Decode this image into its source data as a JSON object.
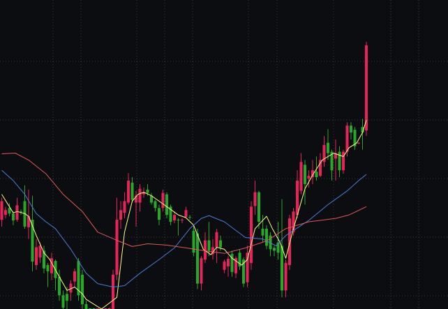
{
  "chart_data": {
    "type": "candlestick",
    "title": "",
    "xlabel": "",
    "ylabel": "",
    "grid": true,
    "ylim": [
      -0.7,
      44.3
    ],
    "colors": {
      "background": "#0c0d10",
      "grid": "#3c3c3c",
      "up": "#e8235a",
      "down": "#28a828",
      "ma_short": "#ffff88",
      "ma_mid": "#4a7fd8",
      "ma_long": "#e05a5a"
    },
    "candles_ohlc": [
      [
        12.3,
        15.5,
        11.3,
        15.0
      ],
      [
        13.0,
        14.2,
        12.5,
        13.7
      ],
      [
        14.0,
        14.7,
        12.8,
        13.2
      ],
      [
        13.2,
        13.5,
        11.5,
        12.2
      ],
      [
        12.3,
        15.5,
        12.0,
        14.4
      ],
      [
        13.5,
        13.8,
        13.0,
        13.4
      ],
      [
        15.0,
        17.3,
        11.0,
        11.3
      ],
      [
        11.2,
        16.7,
        9.5,
        12.8
      ],
      [
        12.3,
        15.8,
        4.8,
        6.2
      ],
      [
        5.7,
        9.5,
        5.0,
        8.3
      ],
      [
        6.8,
        9.0,
        6.0,
        8.5
      ],
      [
        7.8,
        8.5,
        4.5,
        5.2
      ],
      [
        5.7,
        6.0,
        2.5,
        4.8
      ],
      [
        4.5,
        7.5,
        3.5,
        6.7
      ],
      [
        6.3,
        6.5,
        2.0,
        3.8
      ],
      [
        4.0,
        5.0,
        0.5,
        1.3
      ],
      [
        1.3,
        2.0,
        -1.5,
        -0.5
      ],
      [
        1.5,
        2.5,
        -1.0,
        0.5
      ],
      [
        1.7,
        3.5,
        0.5,
        3.0
      ],
      [
        3.3,
        5.2,
        2.5,
        4.8
      ],
      [
        6.3,
        6.7,
        0.5,
        1.3
      ],
      [
        4.3,
        5.0,
        -1.0,
        0.0
      ],
      [
        0.0,
        0.5,
        -3.0,
        -2.0
      ],
      [
        -2.0,
        -1.5,
        -4.0,
        -3.5
      ],
      [
        -3.5,
        -3.0,
        -5.0,
        -4.5
      ],
      [
        -4.5,
        -2.5,
        -5.0,
        -3.0
      ],
      [
        -3.0,
        -2.5,
        -4.5,
        -4.0
      ],
      [
        -4.0,
        -2.0,
        -4.5,
        -2.5
      ],
      [
        -2.5,
        -0.5,
        -3.0,
        -1.0
      ],
      [
        -1.0,
        5.0,
        -2.0,
        4.3
      ],
      [
        4.3,
        15.5,
        3.5,
        12.3
      ],
      [
        12.3,
        15.0,
        11.0,
        13.7
      ],
      [
        13.3,
        16.3,
        12.5,
        15.0
      ],
      [
        14.8,
        19.1,
        14.5,
        18.0
      ],
      [
        17.7,
        18.5,
        14.8,
        15.2
      ],
      [
        14.8,
        16.5,
        11.3,
        15.8
      ],
      [
        14.8,
        17.5,
        13.5,
        16.8
      ],
      [
        16.0,
        17.0,
        15.5,
        16.3
      ],
      [
        16.7,
        17.5,
        15.8,
        16.2
      ],
      [
        15.8,
        16.2,
        14.5,
        14.8
      ],
      [
        15.0,
        15.2,
        13.5,
        14.0
      ],
      [
        14.0,
        14.5,
        11.5,
        12.3
      ],
      [
        14.0,
        16.7,
        13.5,
        16.2
      ],
      [
        16.0,
        16.3,
        12.5,
        13.0
      ],
      [
        14.2,
        14.5,
        11.5,
        12.0
      ],
      [
        12.2,
        13.5,
        11.8,
        13.0
      ],
      [
        12.3,
        12.5,
        10.0,
        12.2
      ],
      [
        12.2,
        12.5,
        11.8,
        12.3
      ],
      [
        12.7,
        14.2,
        12.5,
        13.7
      ],
      [
        12.7,
        13.0,
        12.3,
        12.6
      ],
      [
        10.7,
        11.5,
        7.0,
        7.5
      ],
      [
        10.3,
        11.0,
        2.2,
        3.0
      ],
      [
        3.0,
        7.0,
        2.0,
        6.7
      ],
      [
        6.5,
        10.5,
        6.0,
        9.3
      ],
      [
        9.3,
        12.0,
        7.0,
        7.8
      ],
      [
        7.3,
        9.5,
        6.5,
        8.3
      ],
      [
        8.3,
        11.0,
        6.0,
        10.5
      ],
      [
        9.3,
        10.0,
        7.8,
        8.3
      ],
      [
        5.0,
        6.5,
        4.5,
        6.2
      ],
      [
        5.5,
        7.0,
        4.0,
        6.6
      ],
      [
        7.3,
        7.8,
        4.0,
        4.7
      ],
      [
        4.5,
        7.0,
        3.8,
        6.7
      ],
      [
        7.5,
        8.0,
        5.0,
        5.5
      ],
      [
        6.5,
        6.8,
        2.5,
        3.0
      ],
      [
        3.2,
        8.5,
        2.5,
        7.5
      ],
      [
        6.0,
        15.0,
        5.0,
        14.2
      ],
      [
        14.3,
        18.0,
        13.0,
        16.3
      ],
      [
        16.3,
        16.5,
        11.0,
        12.0
      ],
      [
        11.0,
        13.0,
        9.0,
        10.0
      ],
      [
        11.0,
        11.5,
        8.0,
        8.5
      ],
      [
        10.0,
        10.5,
        7.0,
        8.0
      ],
      [
        8.2,
        8.5,
        7.0,
        7.8
      ],
      [
        9.0,
        12.0,
        6.5,
        7.5
      ],
      [
        8.5,
        15.3,
        1.0,
        2.0
      ],
      [
        2.0,
        6.5,
        1.0,
        6.0
      ],
      [
        5.7,
        13.0,
        5.0,
        12.5
      ],
      [
        10.5,
        14.0,
        10.0,
        13.5
      ],
      [
        13.0,
        19.5,
        12.5,
        18.0
      ],
      [
        16.5,
        22.0,
        16.0,
        20.7
      ],
      [
        20.3,
        21.0,
        14.5,
        17.5
      ],
      [
        18.3,
        19.5,
        17.0,
        18.7
      ],
      [
        18.5,
        21.0,
        17.5,
        19.5
      ],
      [
        19.3,
        21.5,
        18.0,
        18.5
      ],
      [
        18.7,
        22.0,
        18.5,
        21.0
      ],
      [
        20.7,
        24.5,
        20.0,
        23.2
      ],
      [
        23.5,
        25.5,
        21.0,
        22.0
      ],
      [
        22.2,
        22.5,
        18.0,
        19.5
      ],
      [
        21.2,
        24.0,
        18.0,
        22.0
      ],
      [
        22.2,
        23.0,
        18.5,
        19.5
      ],
      [
        19.5,
        22.5,
        19.0,
        22.2
      ],
      [
        22.2,
        26.5,
        21.5,
        26.0
      ],
      [
        26.0,
        26.5,
        24.0,
        25.0
      ],
      [
        25.4,
        25.8,
        22.5,
        23.0
      ],
      [
        23.4,
        23.6,
        23.3,
        23.5
      ],
      [
        25.8,
        27.0,
        22.5,
        25.0
      ],
      [
        25.3,
        38.2,
        24.5,
        37.7
      ]
    ],
    "moving_averages": [
      {
        "key": "ma_short",
        "points": [
          [
            0,
            16
          ],
          [
            3,
            13.3
          ],
          [
            4,
            13.5
          ],
          [
            6,
            13.2
          ],
          [
            7,
            12.8
          ],
          [
            9,
            10
          ],
          [
            11,
            7.5
          ],
          [
            12.5,
            6.5
          ],
          [
            14,
            5
          ],
          [
            17,
            2
          ],
          [
            19,
            2.5
          ],
          [
            21,
            1.5
          ],
          [
            22,
            0.7
          ],
          [
            26,
            -1.5
          ],
          [
            30,
            1
          ],
          [
            32,
            10.5
          ],
          [
            34,
            15
          ],
          [
            35.5,
            16
          ],
          [
            37,
            16.3
          ],
          [
            39,
            15.8
          ],
          [
            41,
            15
          ],
          [
            43.5,
            14
          ],
          [
            46,
            13
          ],
          [
            48,
            12.6
          ],
          [
            50,
            11.5
          ],
          [
            52.5,
            8
          ],
          [
            54.5,
            7.2
          ],
          [
            56,
            8.3
          ],
          [
            58,
            8
          ],
          [
            60,
            6.7
          ],
          [
            62.5,
            5.7
          ],
          [
            64,
            6.5
          ],
          [
            66,
            11
          ],
          [
            69,
            12.8
          ],
          [
            70.5,
            11
          ],
          [
            72.5,
            9
          ],
          [
            74,
            6.7
          ],
          [
            76,
            11
          ],
          [
            79,
            16.8
          ],
          [
            81,
            18.8
          ],
          [
            83.5,
            21
          ],
          [
            86.5,
            22
          ],
          [
            89,
            21.5
          ],
          [
            90.5,
            22.8
          ],
          [
            92.5,
            23.5
          ],
          [
            94,
            25
          ],
          [
            95,
            26.8
          ]
        ]
      },
      {
        "key": "ma_mid",
        "points": [
          [
            0,
            19.5
          ],
          [
            3,
            18
          ],
          [
            6,
            16
          ],
          [
            9,
            13.2
          ],
          [
            11.5,
            12
          ],
          [
            14,
            11
          ],
          [
            18,
            8
          ],
          [
            22,
            4.5
          ],
          [
            25,
            3
          ],
          [
            29,
            2.5
          ],
          [
            32,
            2.7
          ],
          [
            36,
            4.5
          ],
          [
            41,
            6.5
          ],
          [
            45,
            8.2
          ],
          [
            49,
            11
          ],
          [
            52,
            12.5
          ],
          [
            54,
            12.9
          ],
          [
            58,
            12
          ],
          [
            63.5,
            9.7
          ],
          [
            68,
            9.5
          ],
          [
            71.5,
            8.5
          ],
          [
            74,
            10
          ],
          [
            80,
            12.2
          ],
          [
            85,
            14.5
          ],
          [
            90,
            16.5
          ],
          [
            93,
            18
          ],
          [
            95,
            18.9
          ]
        ]
      },
      {
        "key": "ma_long",
        "points": [
          [
            0,
            21.9
          ],
          [
            3.5,
            22
          ],
          [
            7,
            21
          ],
          [
            11.5,
            19
          ],
          [
            16,
            16
          ],
          [
            21,
            13.5
          ],
          [
            25,
            10.5
          ],
          [
            30,
            9.3
          ],
          [
            34,
            8.4
          ],
          [
            38,
            8.8
          ],
          [
            43,
            8.6
          ],
          [
            48,
            8.2
          ],
          [
            52.5,
            7.8
          ],
          [
            58,
            7.4
          ],
          [
            63.5,
            8.2
          ],
          [
            69,
            9.2
          ],
          [
            74,
            11
          ],
          [
            80,
            12
          ],
          [
            87,
            12.5
          ],
          [
            90.5,
            13
          ],
          [
            95,
            14.2
          ]
        ]
      }
    ]
  }
}
